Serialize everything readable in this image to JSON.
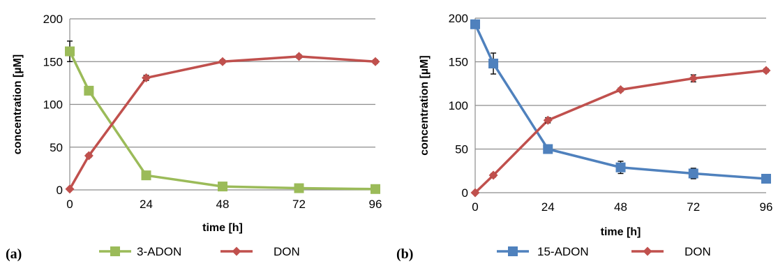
{
  "chart_data": [
    {
      "type": "line",
      "panel_label": "(a)",
      "xlabel": "time [h]",
      "ylabel": "concentration [µM]",
      "xlim": [
        0,
        96
      ],
      "ylim": [
        0,
        200
      ],
      "xticks": [
        0,
        24,
        48,
        72,
        96
      ],
      "yticks": [
        0,
        50,
        100,
        150,
        200
      ],
      "grid": true,
      "legend_position": "bottom",
      "series": [
        {
          "name": "3-ADON",
          "color": "#9BBB59",
          "marker": "square",
          "x": [
            0,
            6,
            24,
            48,
            72,
            96
          ],
          "y": [
            162,
            116,
            17,
            4,
            2,
            1
          ],
          "err": [
            12,
            3,
            2,
            1,
            1,
            1
          ]
        },
        {
          "name": "DON",
          "color": "#C0504D",
          "marker": "diamond",
          "x": [
            0,
            6,
            24,
            48,
            72,
            96
          ],
          "y": [
            1,
            40,
            131,
            150,
            156,
            150
          ],
          "err": [
            0,
            2,
            3,
            2,
            2,
            2
          ]
        }
      ]
    },
    {
      "type": "line",
      "panel_label": "(b)",
      "xlabel": "time [h]",
      "ylabel": "concentration [µM]",
      "xlim": [
        0,
        96
      ],
      "ylim": [
        0,
        200
      ],
      "xticks": [
        0,
        24,
        48,
        72,
        96
      ],
      "yticks": [
        0,
        50,
        100,
        150,
        200
      ],
      "grid": true,
      "legend_position": "bottom",
      "series": [
        {
          "name": "15-ADON",
          "color": "#4F81BD",
          "marker": "square",
          "x": [
            0,
            6,
            24,
            48,
            72,
            96
          ],
          "y": [
            193,
            148,
            50,
            29,
            22,
            16
          ],
          "err": [
            4,
            12,
            3,
            7,
            6,
            3
          ]
        },
        {
          "name": "DON",
          "color": "#C0504D",
          "marker": "diamond",
          "x": [
            0,
            6,
            24,
            48,
            72,
            96
          ],
          "y": [
            0,
            20,
            83,
            118,
            131,
            140
          ],
          "err": [
            0,
            2,
            3,
            2,
            4,
            2
          ]
        }
      ]
    }
  ]
}
